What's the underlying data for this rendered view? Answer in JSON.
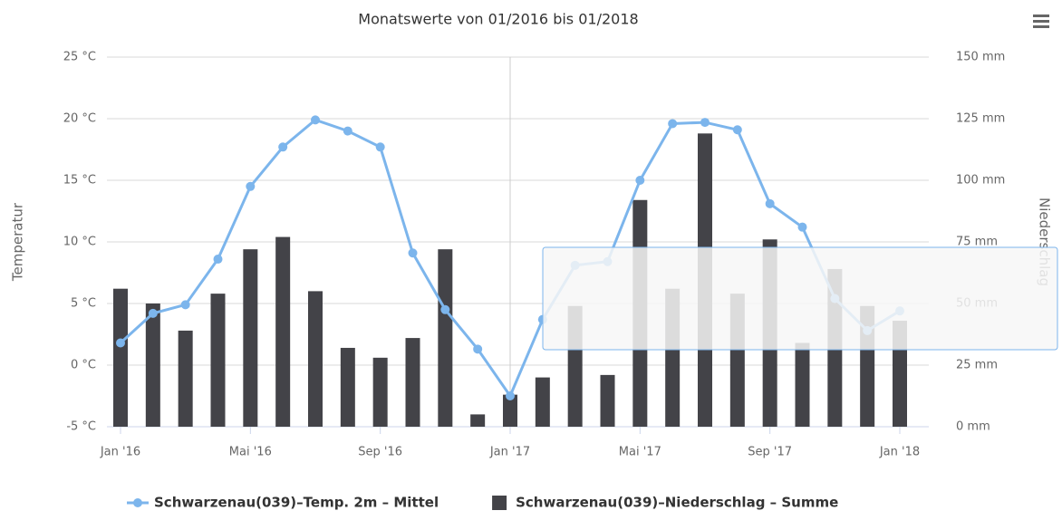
{
  "chart_data": {
    "type": "combo",
    "title": "Monatswerte von 01/2016 bis 01/2018",
    "y_label": "Temperatur",
    "y2_label": "Niederschlag",
    "categories": [
      "Jan '16",
      null,
      null,
      null,
      "Mai '16",
      null,
      null,
      null,
      "Sep '16",
      null,
      null,
      null,
      "Jan '17",
      null,
      null,
      null,
      "Mai '17",
      null,
      null,
      null,
      "Sep '17",
      null,
      null,
      null,
      "Jan '18"
    ],
    "ylim": [
      -5,
      25
    ],
    "yticks": [
      {
        "value": -5,
        "label": "-5 °C"
      },
      {
        "value": 0,
        "label": "0 °C"
      },
      {
        "value": 5,
        "label": "5 °C"
      },
      {
        "value": 10,
        "label": "10 °C"
      },
      {
        "value": 15,
        "label": "15 °C"
      },
      {
        "value": 20,
        "label": "20 °C"
      },
      {
        "value": 25,
        "label": "25 °C"
      }
    ],
    "y2lim": [
      0,
      150
    ],
    "y2ticks": [
      {
        "value": 0,
        "label": "0 mm"
      },
      {
        "value": 25,
        "label": "25 mm"
      },
      {
        "value": 50,
        "label": "50 mm"
      },
      {
        "value": 75,
        "label": "75 mm"
      },
      {
        "value": 100,
        "label": "100 mm"
      },
      {
        "value": 125,
        "label": "125 mm"
      },
      {
        "value": 150,
        "label": "150 mm"
      }
    ],
    "grid": true,
    "legend": "bottom",
    "series": [
      {
        "name": "Schwarzenau(039)–Temp. 2m – Mittel",
        "type": "line",
        "color": "#7cb5ec",
        "values": [
          1.8,
          4.2,
          4.9,
          8.6,
          14.5,
          17.7,
          19.9,
          19.0,
          17.7,
          9.1,
          4.5,
          1.3,
          -2.5,
          3.7,
          8.1,
          8.4,
          15.0,
          19.6,
          19.7,
          19.1,
          13.1,
          11.2,
          5.4,
          2.8,
          4.4
        ]
      },
      {
        "name": "Schwarzenau(039)–Niederschlag – Summe",
        "type": "column",
        "axis": "y2",
        "color": "#434348",
        "values": [
          56,
          50,
          39,
          54,
          72,
          77,
          55,
          32,
          28,
          36,
          72,
          5,
          13,
          20,
          49,
          21,
          92,
          56,
          119,
          54,
          76,
          34,
          64,
          49,
          43
        ]
      }
    ]
  }
}
